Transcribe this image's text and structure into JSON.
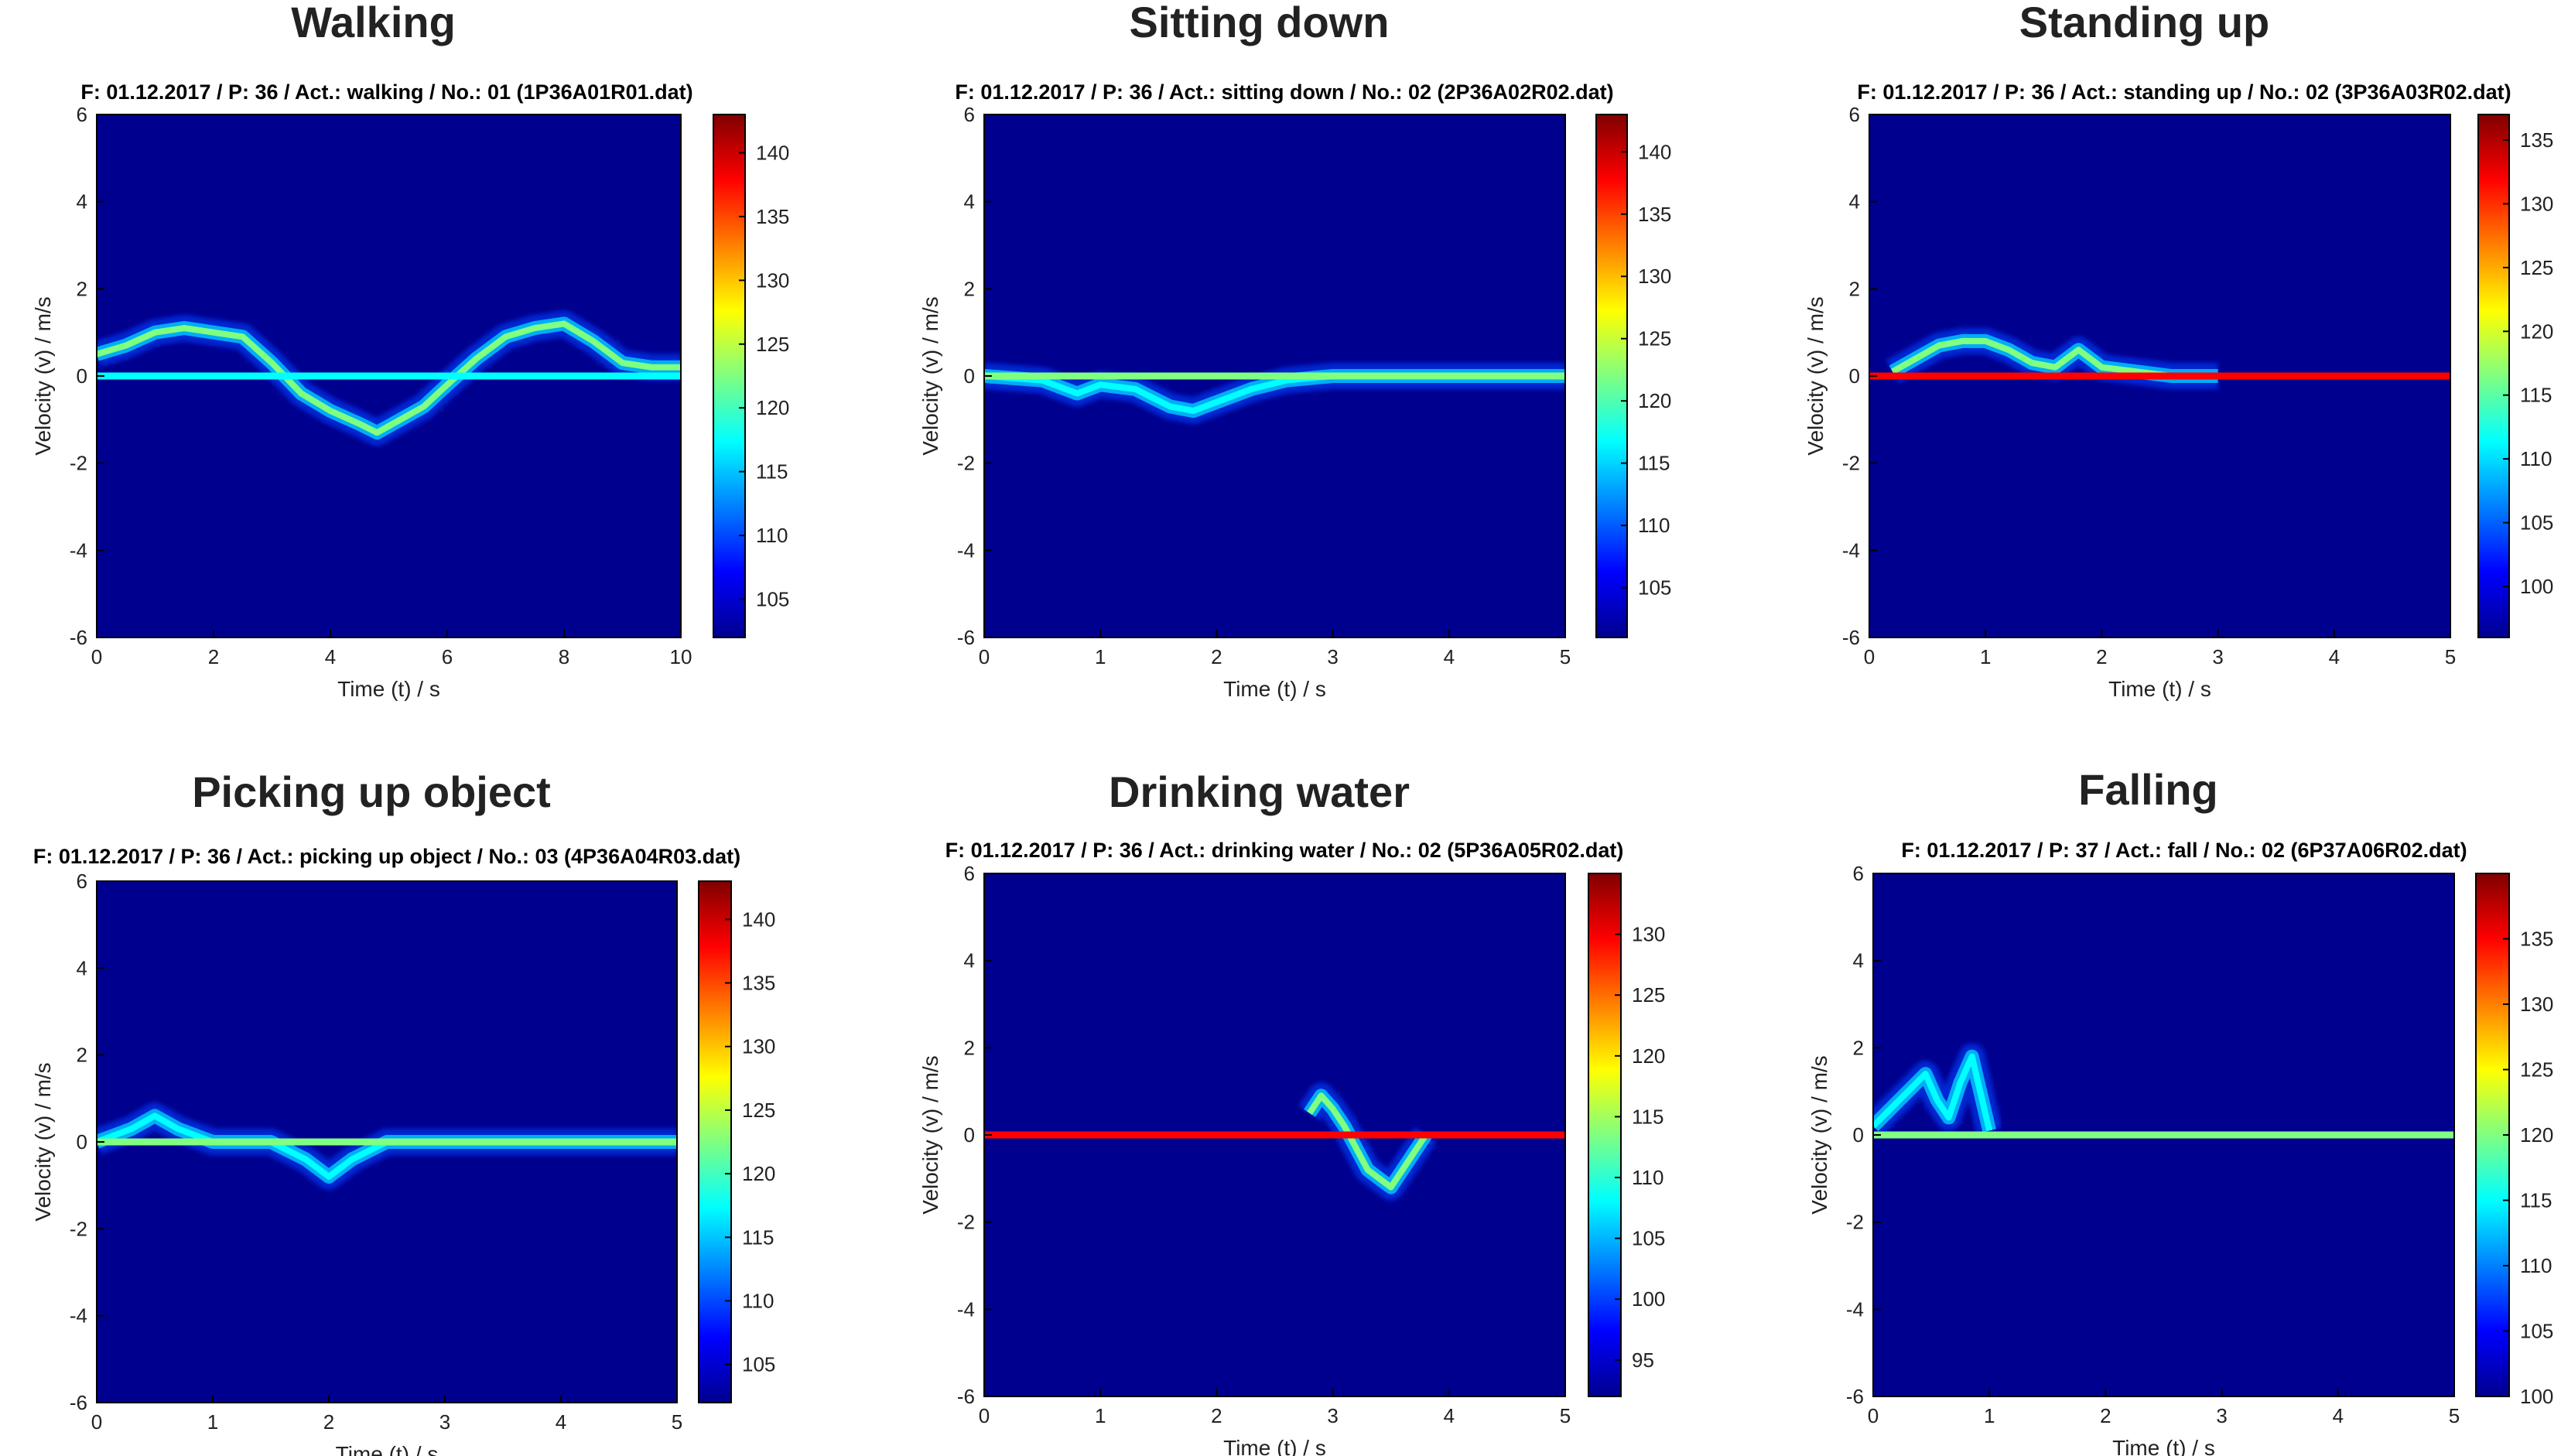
{
  "figure": {
    "type": "spectrogram-grid"
  },
  "colormap": [
    "#00008f",
    "#0000ff",
    "#0080ff",
    "#00ffff",
    "#80ff80",
    "#ffff00",
    "#ff8000",
    "#ff0000",
    "#800000"
  ],
  "chart_data": [
    {
      "type": "heatmap",
      "title": "Walking",
      "subtitle": "F: 01.12.2017 / P: 36 / Act.: walking / No.: 01 (1P36A01R01.dat)",
      "xlabel": "Time (t) / s",
      "ylabel": "Velocity (v) / m/s",
      "xlim": [
        0,
        10
      ],
      "ylim": [
        -6,
        6
      ],
      "xticks": [
        0,
        2,
        4,
        6,
        8,
        10
      ],
      "yticks": [
        -6,
        -4,
        -2,
        0,
        2,
        4,
        6
      ],
      "cbar_range": [
        102,
        143
      ],
      "cbar_ticks": [
        105,
        110,
        115,
        120,
        125,
        130,
        135,
        140
      ],
      "series": [
        {
          "name": "body motion trace",
          "t": [
            0,
            0.5,
            1,
            1.5,
            2,
            2.5,
            3,
            3.5,
            4,
            4.5,
            4.8,
            5.2,
            5.6,
            6,
            6.5,
            7,
            7.5,
            8,
            8.5,
            9,
            9.5,
            10
          ],
          "v": [
            0.5,
            0.7,
            1.0,
            1.1,
            1.0,
            0.9,
            0.3,
            -0.4,
            -0.8,
            -1.1,
            -1.3,
            -1.0,
            -0.7,
            -0.2,
            0.4,
            0.9,
            1.1,
            1.2,
            0.8,
            0.3,
            0.2,
            0.2
          ],
          "intensity": 124
        },
        {
          "name": "zero-velocity line",
          "t_range": [
            0,
            10
          ],
          "v": 0,
          "intensity": 118
        }
      ]
    },
    {
      "type": "heatmap",
      "title": "Sitting down",
      "subtitle": "F: 01.12.2017 / P: 36 / Act.: sitting down / No.: 02 (2P36A02R02.dat)",
      "xlabel": "Time (t) / s",
      "ylabel": "Velocity (v) / m/s",
      "xlim": [
        0,
        5
      ],
      "ylim": [
        -6,
        6
      ],
      "xticks": [
        0,
        1,
        2,
        3,
        4,
        5
      ],
      "yticks": [
        -6,
        -4,
        -2,
        0,
        2,
        4,
        6
      ],
      "cbar_range": [
        101,
        143
      ],
      "cbar_ticks": [
        105,
        110,
        115,
        120,
        125,
        130,
        135,
        140
      ],
      "series": [
        {
          "name": "body motion trace",
          "t": [
            0,
            0.5,
            0.8,
            1.0,
            1.3,
            1.6,
            1.8,
            2.0,
            2.3,
            2.6,
            3,
            4,
            5
          ],
          "v": [
            0,
            -0.1,
            -0.4,
            -0.2,
            -0.3,
            -0.7,
            -0.8,
            -0.6,
            -0.3,
            -0.1,
            0,
            0,
            0
          ],
          "intensity": 116
        },
        {
          "name": "zero-velocity line",
          "t_range": [
            0,
            5
          ],
          "v": 0,
          "intensity": 120
        }
      ]
    },
    {
      "type": "heatmap",
      "title": "Standing up",
      "subtitle": "F: 01.12.2017 / P: 36 / Act.: standing up / No.: 02 (3P36A03R02.dat)",
      "xlabel": "Time (t) / s",
      "ylabel": "Velocity (v) / m/s",
      "xlim": [
        0,
        5
      ],
      "ylim": [
        -6,
        6
      ],
      "xticks": [
        0,
        1,
        2,
        3,
        4,
        5
      ],
      "yticks": [
        -6,
        -4,
        -2,
        0,
        2,
        4,
        6
      ],
      "cbar_range": [
        96,
        137
      ],
      "cbar_ticks": [
        100,
        105,
        110,
        115,
        120,
        125,
        130,
        135
      ],
      "series": [
        {
          "name": "body motion trace",
          "t": [
            0.2,
            0.4,
            0.6,
            0.8,
            1.0,
            1.2,
            1.4,
            1.6,
            1.8,
            2.0,
            2.3,
            2.6,
            3
          ],
          "v": [
            0.1,
            0.4,
            0.7,
            0.8,
            0.8,
            0.6,
            0.3,
            0.2,
            0.6,
            0.2,
            0.1,
            0.0,
            0.0
          ],
          "intensity": 118
        },
        {
          "name": "zero-velocity line",
          "t_range": [
            0,
            5
          ],
          "v": 0,
          "intensity": 131
        }
      ]
    },
    {
      "type": "heatmap",
      "title": "Picking up object",
      "subtitle": "F: 01.12.2017 / P: 36 / Act.: picking up object / No.: 03 (4P36A04R03.dat)",
      "xlabel": "Time (t) / s",
      "ylabel": "Velocity (v) / m/s",
      "xlim": [
        0,
        5
      ],
      "ylim": [
        -6,
        6
      ],
      "xticks": [
        0,
        1,
        2,
        3,
        4,
        5
      ],
      "yticks": [
        -6,
        -4,
        -2,
        0,
        2,
        4,
        6
      ],
      "cbar_range": [
        102,
        143
      ],
      "cbar_ticks": [
        105,
        110,
        115,
        120,
        125,
        130,
        135,
        140
      ],
      "series": [
        {
          "name": "body motion trace",
          "t": [
            0,
            0.3,
            0.5,
            0.7,
            1.0,
            1.5,
            1.8,
            2.0,
            2.2,
            2.5,
            3,
            5
          ],
          "v": [
            0,
            0.3,
            0.6,
            0.3,
            0,
            0,
            -0.4,
            -0.8,
            -0.4,
            0,
            0,
            0
          ],
          "intensity": 116
        },
        {
          "name": "zero-velocity line",
          "t_range": [
            0,
            5
          ],
          "v": 0,
          "intensity": 124
        }
      ]
    },
    {
      "type": "heatmap",
      "title": "Drinking water",
      "subtitle": "F: 01.12.2017 / P: 36 / Act.: drinking water / No.: 02 (5P36A05R02.dat)",
      "xlabel": "Time (t) / s",
      "ylabel": "Velocity (v) / m/s",
      "xlim": [
        0,
        5
      ],
      "ylim": [
        -6,
        6
      ],
      "xticks": [
        0,
        1,
        2,
        3,
        4,
        5
      ],
      "yticks": [
        -6,
        -4,
        -2,
        0,
        2,
        4,
        6
      ],
      "cbar_range": [
        92,
        135
      ],
      "cbar_ticks": [
        95,
        100,
        105,
        110,
        115,
        120,
        125,
        130
      ],
      "series": [
        {
          "name": "body motion trace",
          "t": [
            2.8,
            2.9,
            3.0,
            3.1,
            3.2,
            3.3,
            3.5,
            3.8
          ],
          "v": [
            0.5,
            0.9,
            0.6,
            0.2,
            -0.3,
            -0.8,
            -1.2,
            0
          ],
          "intensity": 112
        },
        {
          "name": "zero-velocity line",
          "t_range": [
            0,
            5
          ],
          "v": 0,
          "intensity": 127
        }
      ]
    },
    {
      "type": "heatmap",
      "title": "Falling",
      "subtitle": "F: 01.12.2017 / P: 37 / Act.: fall / No.: 02 (6P37A06R02.dat)",
      "xlabel": "Time (t) / s",
      "ylabel": "Velocity (v) / m/s",
      "xlim": [
        0,
        5
      ],
      "ylim": [
        -6,
        6
      ],
      "xticks": [
        0,
        1,
        2,
        3,
        4,
        5
      ],
      "yticks": [
        -6,
        -4,
        -2,
        0,
        2,
        4,
        6
      ],
      "cbar_range": [
        100,
        140
      ],
      "cbar_ticks": [
        100,
        105,
        110,
        115,
        120,
        125,
        130,
        135
      ],
      "series": [
        {
          "name": "body motion trace",
          "t": [
            0,
            0.15,
            0.3,
            0.45,
            0.55,
            0.65,
            0.75,
            0.85,
            1.0
          ],
          "v": [
            0.2,
            0.6,
            1.0,
            1.4,
            0.8,
            0.4,
            1.2,
            1.8,
            0.1
          ],
          "intensity": 114
        },
        {
          "name": "zero-velocity line",
          "t_range": [
            0,
            5
          ],
          "v": 0,
          "intensity": 118
        }
      ]
    }
  ]
}
